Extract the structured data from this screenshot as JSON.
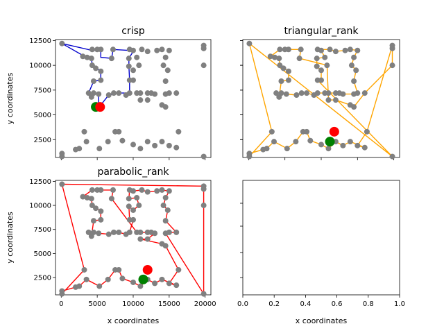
{
  "chart_data": [
    {
      "type": "scatter",
      "title": "crisp",
      "xlabel": "",
      "ylabel": "y coordinates",
      "xlim": [
        -800,
        20800
      ],
      "ylim": [
        700,
        12600
      ],
      "xticks": [
        0,
        5000,
        10000,
        15000,
        20000
      ],
      "xtick_labels": [],
      "yticks": [
        2500,
        5000,
        7500,
        10000,
        12500
      ],
      "ytick_labels": [
        "2500",
        "5000",
        "7500",
        "10000",
        "12500"
      ],
      "line_color": "#0000cc",
      "start_marker": {
        "color": "#008000",
        "x": 4800,
        "y": 5800
      },
      "end_marker": {
        "color": "#ff0000",
        "x": 5400,
        "y": 5800
      },
      "route": [
        [
          5200,
          6000
        ],
        [
          5200,
          7100
        ],
        [
          4500,
          7200
        ],
        [
          4200,
          6800
        ],
        [
          3800,
          7200
        ],
        [
          4500,
          8400
        ],
        [
          5500,
          8500
        ],
        [
          5500,
          9400
        ],
        [
          4800,
          9700
        ],
        [
          4300,
          10000
        ],
        [
          4200,
          10700
        ],
        [
          3600,
          10900
        ],
        [
          3000,
          11000
        ],
        [
          100,
          12200
        ],
        [
          4300,
          11500
        ],
        [
          5000,
          11500
        ],
        [
          5500,
          11600
        ],
        [
          5500,
          10800
        ],
        [
          7000,
          10700
        ],
        [
          7200,
          11600
        ],
        [
          9500,
          11500
        ],
        [
          10000,
          11400
        ],
        [
          9400,
          10700
        ],
        [
          9400,
          9900
        ],
        [
          9500,
          8500
        ],
        [
          9500,
          7200
        ],
        [
          8000,
          7200
        ],
        [
          7300,
          7100
        ],
        [
          6600,
          7000
        ],
        [
          5500,
          6000
        ]
      ]
    },
    {
      "type": "scatter",
      "title": "triangular_rank",
      "xlabel": "",
      "ylabel": "",
      "xlim": [
        -800,
        20800
      ],
      "ylim": [
        700,
        12600
      ],
      "xticks": [
        0,
        5000,
        10000,
        15000,
        20000
      ],
      "xtick_labels": [],
      "yticks": [
        2500,
        5000,
        7500,
        10000,
        12500
      ],
      "ytick_labels": [],
      "line_color": "#ffa500",
      "start_marker": {
        "color": "#008000",
        "x": 11200,
        "y": 2300
      },
      "end_marker": {
        "color": "#ff0000",
        "x": 11800,
        "y": 3300
      }
    },
    {
      "type": "scatter",
      "title": "parabolic_rank",
      "xlabel": "x coordinates",
      "ylabel": "y coordinates",
      "xlim": [
        -800,
        20800
      ],
      "ylim": [
        700,
        12600
      ],
      "xticks": [
        0,
        5000,
        10000,
        15000,
        20000
      ],
      "xtick_labels": [
        "0",
        "5000",
        "10000",
        "15000",
        "20000"
      ],
      "yticks": [
        2500,
        5000,
        7500,
        10000,
        12500
      ],
      "ytick_labels": [
        "2500",
        "5000",
        "7500",
        "10000",
        "12500"
      ],
      "line_color": "#ff0000",
      "start_marker": {
        "color": "#008000",
        "x": 11400,
        "y": 2300
      },
      "end_marker": {
        "color": "#ff0000",
        "x": 12000,
        "y": 3300
      }
    },
    {
      "type": "scatter",
      "title": "",
      "xlabel": "x coordinates",
      "ylabel": "",
      "xlim": [
        0,
        1
      ],
      "ylim": [
        0,
        1
      ],
      "xticks": [
        0,
        0.2,
        0.4,
        0.6,
        0.8,
        1.0
      ],
      "xtick_labels": [
        "0.0",
        "0.2",
        "0.4",
        "0.6",
        "0.8",
        "1.0"
      ],
      "yticks": [],
      "ytick_labels": [],
      "empty": true
    }
  ],
  "cities": [
    [
      100,
      12200
    ],
    [
      3000,
      10900
    ],
    [
      3600,
      10800
    ],
    [
      4200,
      10700
    ],
    [
      4300,
      11600
    ],
    [
      5000,
      11600
    ],
    [
      5500,
      11600
    ],
    [
      4800,
      9700
    ],
    [
      4300,
      10000
    ],
    [
      5500,
      9400
    ],
    [
      5500,
      8500
    ],
    [
      4500,
      8400
    ],
    [
      3800,
      7200
    ],
    [
      4200,
      6800
    ],
    [
      4500,
      7200
    ],
    [
      5200,
      7100
    ],
    [
      6600,
      7000
    ],
    [
      7300,
      7200
    ],
    [
      8000,
      7200
    ],
    [
      9500,
      7200
    ],
    [
      9500,
      8500
    ],
    [
      9400,
      9900
    ],
    [
      9400,
      10700
    ],
    [
      7000,
      10700
    ],
    [
      7200,
      11600
    ],
    [
      9500,
      11600
    ],
    [
      10000,
      11500
    ],
    [
      10500,
      10800
    ],
    [
      10800,
      10000
    ],
    [
      10000,
      9500
    ],
    [
      10000,
      8500
    ],
    [
      10500,
      7200
    ],
    [
      11000,
      6500
    ],
    [
      12000,
      6500
    ],
    [
      12000,
      7200
    ],
    [
      12500,
      7200
    ],
    [
      13000,
      7100
    ],
    [
      14500,
      7100
    ],
    [
      15000,
      7200
    ],
    [
      14500,
      8400
    ],
    [
      14800,
      9500
    ],
    [
      14200,
      10000
    ],
    [
      14500,
      10800
    ],
    [
      15000,
      11500
    ],
    [
      14000,
      11600
    ],
    [
      13300,
      11500
    ],
    [
      12000,
      11400
    ],
    [
      11200,
      11600
    ],
    [
      9000,
      7000
    ],
    [
      11000,
      7200
    ],
    [
      14000,
      6000
    ],
    [
      14500,
      5800
    ],
    [
      16000,
      7200
    ],
    [
      19800,
      12000
    ],
    [
      19800,
      11700
    ],
    [
      19800,
      10000
    ],
    [
      19800,
      800
    ],
    [
      16000,
      1700
    ],
    [
      15000,
      1900
    ],
    [
      14000,
      2300
    ],
    [
      13000,
      1900
    ],
    [
      12000,
      2300
    ],
    [
      11000,
      1600
    ],
    [
      10000,
      2000
    ],
    [
      8500,
      2400
    ],
    [
      8000,
      3300
    ],
    [
      7500,
      3300
    ],
    [
      6500,
      2300
    ],
    [
      5300,
      1600
    ],
    [
      3500,
      2300
    ],
    [
      2500,
      1600
    ],
    [
      2000,
      1500
    ],
    [
      100,
      1100
    ],
    [
      100,
      800
    ],
    [
      3200,
      3300
    ],
    [
      16300,
      3300
    ]
  ]
}
